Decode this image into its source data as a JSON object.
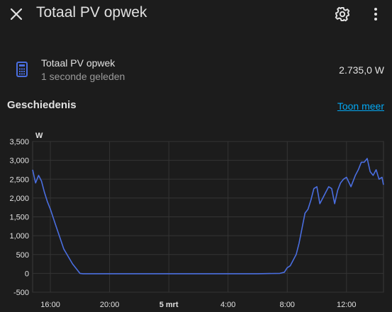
{
  "header": {
    "title": "Totaal PV opwek",
    "close_icon": "close-icon",
    "settings_icon": "gear-icon",
    "menu_icon": "more-vertical-icon"
  },
  "entity": {
    "icon": "calculator-icon",
    "name": "Totaal PV opwek",
    "last_changed": "1 seconde geleden",
    "state": "2.735,0 W"
  },
  "history": {
    "heading": "Geschiedenis",
    "show_more": "Toon meer"
  },
  "colors": {
    "background": "#1c1c1c",
    "line": "#4a6ee0",
    "link": "#03a9f4",
    "icon": "#4a6ee0"
  },
  "chart_data": {
    "type": "line",
    "ylabel": "W",
    "y_ticks": [
      "3,500",
      "3,000",
      "2,500",
      "2,000",
      "1,500",
      "1,000",
      "500",
      "0",
      "-500"
    ],
    "y_tick_values": [
      3500,
      3000,
      2500,
      2000,
      1500,
      1000,
      500,
      0,
      -500
    ],
    "ylim": [
      -500,
      3500
    ],
    "x_ticks": [
      "16:00",
      "20:00",
      "5 mrt",
      "4:00",
      "8:00",
      "12:00"
    ],
    "x_tick_values": [
      16,
      20,
      24,
      28,
      32,
      36
    ],
    "xlim": [
      14.8,
      38.5
    ],
    "grid": true,
    "series": [
      {
        "x": [
          14.8,
          15.0,
          15.2,
          15.4,
          15.6,
          15.8,
          16.0,
          16.3,
          16.6,
          16.9,
          17.2,
          17.5,
          17.8,
          18.0,
          18.2,
          18.4,
          19.0,
          22.0,
          26.0,
          30.0,
          31.5,
          31.8,
          32.0,
          32.2,
          32.4,
          32.6,
          32.8,
          33.0,
          33.2,
          33.4,
          33.6,
          33.8,
          34.0,
          34.2,
          34.4,
          34.6,
          34.8,
          35.0,
          35.2,
          35.4,
          35.6,
          35.8,
          36.0,
          36.3,
          36.6,
          36.8,
          37.0,
          37.2,
          37.4,
          37.6,
          37.8,
          38.0,
          38.2,
          38.4,
          38.5
        ],
        "y": [
          2750,
          2400,
          2600,
          2450,
          2150,
          1900,
          1700,
          1350,
          1000,
          650,
          450,
          250,
          100,
          0,
          -10,
          -10,
          -10,
          -10,
          -10,
          -10,
          0,
          30,
          150,
          200,
          350,
          500,
          800,
          1200,
          1600,
          1700,
          1950,
          2250,
          2300,
          1850,
          2000,
          2150,
          2300,
          2250,
          1850,
          2200,
          2400,
          2500,
          2550,
          2300,
          2600,
          2750,
          2950,
          2950,
          3050,
          2700,
          2600,
          2750,
          2500,
          2550,
          2350
        ]
      }
    ]
  }
}
